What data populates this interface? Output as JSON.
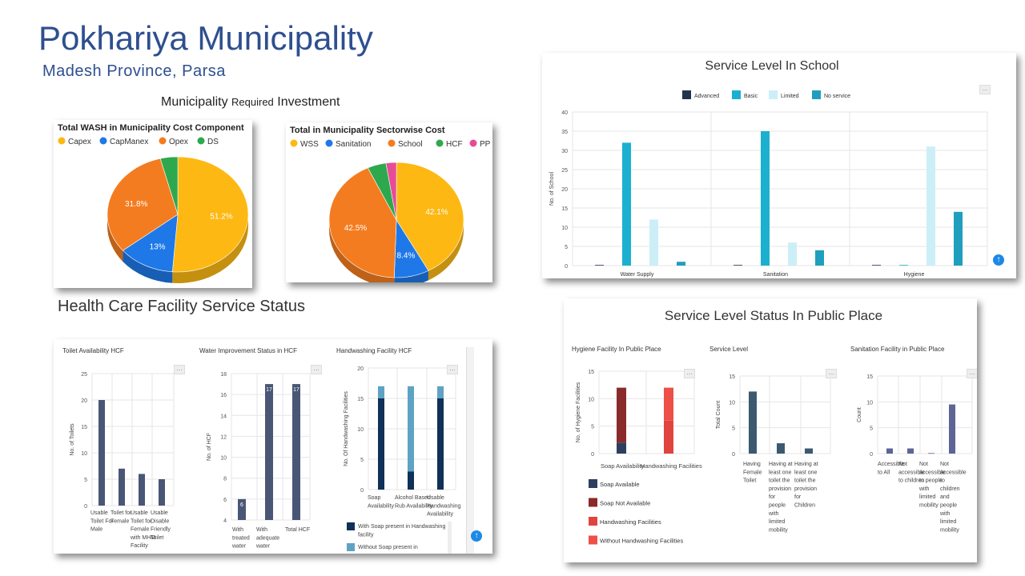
{
  "header": {
    "title": "Pokhariya Municipality",
    "subtitle": "Madesh Province,  Parsa",
    "investment_heading_a": "Municipality ",
    "investment_heading_b": "Required",
    "investment_heading_c": " Investment",
    "hcf_heading": "Health Care Facility Service Status"
  },
  "colors": {
    "capex": "#FDB813",
    "capmanex": "#1F78E8",
    "opex": "#F47C20",
    "ds": "#2EA84C",
    "pp": "#E64C95",
    "advanced": "#22334F",
    "basic": "#1BB0CF",
    "limited": "#CCEFF7",
    "noservice": "#1F9FBD",
    "hcf_bar": "#4A5675",
    "hw_with": "#0F3057",
    "hw_without": "#5EA3C4",
    "pub_soap": "#2D3F5E",
    "pub_nosoap": "#8A2A2A",
    "pub_hw": "#E0443F",
    "pub_nohw": "#EC5046",
    "pub_sl": "#3B5A70",
    "pub_san": "#5D6595"
  },
  "chart_data": [
    {
      "id": "wash-cost",
      "type": "pie",
      "title": "Total WASH in Municipality Cost Component",
      "legend": [
        "Capex",
        "CapManex",
        "Opex",
        "DS"
      ],
      "values": [
        51.2,
        13,
        31.8,
        4
      ],
      "labels": [
        "51.2%",
        "13%",
        "31.8%",
        ""
      ]
    },
    {
      "id": "sector-cost",
      "type": "pie",
      "title": "Total in Municipality Sectorwise Cost",
      "legend": [
        "WSS",
        "Sanitation",
        "School",
        "HCF",
        "PP"
      ],
      "values": [
        42.1,
        8.4,
        42.5,
        4.5,
        2.5
      ],
      "labels": [
        "42.1%",
        "8.4%",
        "42.5%",
        "",
        ""
      ]
    },
    {
      "id": "school",
      "type": "bar",
      "title": "Service Level In School",
      "ylabel": "No. of School",
      "categories": [
        "Water Supply",
        "Sanitation",
        "Hygiene"
      ],
      "ylim": [
        0,
        40
      ],
      "yticks": [
        "0",
        "5",
        "10",
        "15",
        "20",
        "25",
        "30",
        "35",
        "40"
      ],
      "series": [
        {
          "name": "Advanced",
          "values": [
            0,
            0,
            0
          ]
        },
        {
          "name": "Basic",
          "values": [
            32,
            35,
            0
          ]
        },
        {
          "name": "Limited",
          "values": [
            12,
            6,
            31
          ]
        },
        {
          "name": "No service",
          "values": [
            1,
            4,
            14
          ]
        }
      ]
    },
    {
      "id": "toilet-hcf",
      "type": "bar",
      "title": "Toilet Availability HCF",
      "ylabel": "No. of Toilets",
      "ylim": [
        0,
        25
      ],
      "yticks": [
        "0",
        "5",
        "10",
        "15",
        "20",
        "25"
      ],
      "categories": [
        [
          "Usable",
          "Toilet For",
          "Male"
        ],
        [
          "Toilet for",
          "Female"
        ],
        [
          "Usable",
          "Toilet for",
          "Female",
          "with MHM",
          "Facility"
        ],
        [
          "Usable",
          "Disable",
          "Friendly",
          "Toilet"
        ]
      ],
      "values": [
        20,
        7,
        6,
        5
      ]
    },
    {
      "id": "water-hcf",
      "type": "bar",
      "title": "Water Improvement Status in HCF",
      "ylabel": "No. of HCF",
      "ylim": [
        4,
        18
      ],
      "yticks": [
        "4",
        "6",
        "8",
        "10",
        "12",
        "14",
        "16",
        "18"
      ],
      "categories": [
        [
          "With",
          "treated",
          "water"
        ],
        [
          "With",
          "adequate",
          "water"
        ],
        [
          "Total HCF"
        ]
      ],
      "values": [
        6,
        17,
        17
      ],
      "data_labels": [
        "6",
        "17",
        "17"
      ]
    },
    {
      "id": "handwash-hcf",
      "type": "bar",
      "title": "Handwashing Facility HCF",
      "ylabel": "No. Of Handwashing Facilities",
      "ylim": [
        0,
        20
      ],
      "yticks": [
        "0",
        "5",
        "10",
        "15",
        "20"
      ],
      "categories": [
        [
          "Soap",
          "Availability"
        ],
        [
          "Alcohol Based",
          "Rub Availability"
        ],
        [
          "Usable",
          "Handwashing",
          "Availability"
        ]
      ],
      "series": [
        {
          "name": "With Soap present in Handwashing facility",
          "values": [
            15,
            3,
            15
          ]
        },
        {
          "name": "Without Soap present in",
          "values": [
            2,
            14,
            2
          ]
        }
      ],
      "legend": [
        [
          "With Soap present in Handwashing",
          "facility"
        ],
        [
          "Without Soap present in"
        ]
      ]
    },
    {
      "id": "public",
      "type": "bar",
      "title": "Service Level Status In Public Place"
    },
    {
      "id": "hygiene-public",
      "type": "bar",
      "title": "Hygiene Facility In Public Place",
      "ylabel": "No. of Hygiene Facilities",
      "ylim": [
        0,
        15
      ],
      "yticks": [
        "0",
        "5",
        "10",
        "15"
      ],
      "categories": [
        "Soap Availability",
        "Handwashing Facilities"
      ],
      "series": [
        {
          "name": "Soap Available",
          "values": [
            2,
            0
          ]
        },
        {
          "name": "Soap Not Available",
          "values": [
            10,
            0
          ]
        },
        {
          "name": "Handwashing Facilities",
          "values": [
            0,
            6
          ]
        },
        {
          "name": "Without Handwashing Facilities",
          "values": [
            0,
            6
          ]
        }
      ]
    },
    {
      "id": "service-public",
      "type": "bar",
      "title": "Service Level",
      "ylabel": "Total Count",
      "ylim": [
        0,
        15
      ],
      "yticks": [
        "0",
        "5",
        "10",
        "15"
      ],
      "categories": [
        [
          "Having",
          "Female",
          "Toilet"
        ],
        [
          "Having at",
          "least one",
          "toilet the",
          "provision",
          "for",
          "people",
          "with",
          "limited",
          "mobility"
        ],
        [
          "Having at",
          "least one",
          "toilet the",
          "provision",
          "for",
          "Children"
        ]
      ],
      "values": [
        12,
        2,
        1
      ]
    },
    {
      "id": "sanitation-public",
      "type": "bar",
      "title": "Sanitation Facility in Public Place",
      "ylabel": "Count",
      "ylim": [
        0,
        15
      ],
      "yticks": [
        "0",
        "5",
        "10",
        "15"
      ],
      "categories": [
        [
          "Accessible",
          "to All"
        ],
        [
          "Not",
          "accessible",
          "to children"
        ],
        [
          "Not",
          "accessible",
          "to people",
          "with",
          "limited",
          "mobility"
        ],
        [
          "Not",
          "accessible",
          "to",
          "children",
          "and",
          "people",
          "with",
          "limited",
          "mobility"
        ]
      ],
      "values": [
        1,
        1,
        0.1,
        9.5
      ]
    }
  ]
}
